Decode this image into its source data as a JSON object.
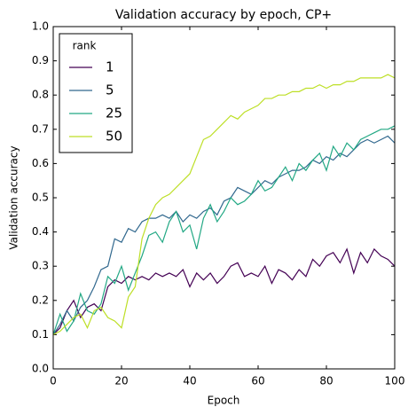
{
  "chart_data": {
    "type": "line",
    "title": "Validation accuracy by epoch, CP+",
    "x_label": "Epoch",
    "y_label": "Validation accuracy",
    "legend_title": "rank",
    "legend": "upper left",
    "x": [
      0,
      2,
      4,
      6,
      8,
      10,
      12,
      14,
      16,
      18,
      20,
      22,
      24,
      26,
      28,
      30,
      32,
      34,
      36,
      38,
      40,
      42,
      44,
      46,
      48,
      50,
      52,
      54,
      56,
      58,
      60,
      62,
      64,
      66,
      68,
      70,
      72,
      74,
      76,
      78,
      80,
      82,
      84,
      86,
      88,
      90,
      92,
      94,
      96,
      98,
      100
    ],
    "series": [
      {
        "name": "1",
        "color": "#440154",
        "values": [
          0.1,
          0.12,
          0.17,
          0.2,
          0.15,
          0.18,
          0.19,
          0.17,
          0.24,
          0.26,
          0.25,
          0.27,
          0.26,
          0.27,
          0.26,
          0.28,
          0.27,
          0.28,
          0.27,
          0.29,
          0.24,
          0.28,
          0.26,
          0.28,
          0.25,
          0.27,
          0.3,
          0.31,
          0.27,
          0.28,
          0.27,
          0.3,
          0.25,
          0.29,
          0.28,
          0.26,
          0.29,
          0.27,
          0.32,
          0.3,
          0.33,
          0.34,
          0.31,
          0.35,
          0.28,
          0.34,
          0.31,
          0.35,
          0.33,
          0.32,
          0.3
        ]
      },
      {
        "name": "5",
        "color": "#31688e",
        "values": [
          0.1,
          0.13,
          0.17,
          0.14,
          0.18,
          0.2,
          0.24,
          0.29,
          0.3,
          0.38,
          0.37,
          0.41,
          0.4,
          0.43,
          0.44,
          0.44,
          0.45,
          0.44,
          0.46,
          0.43,
          0.45,
          0.44,
          0.46,
          0.47,
          0.45,
          0.49,
          0.5,
          0.53,
          0.52,
          0.51,
          0.53,
          0.55,
          0.54,
          0.56,
          0.57,
          0.58,
          0.58,
          0.59,
          0.61,
          0.6,
          0.62,
          0.61,
          0.63,
          0.62,
          0.64,
          0.66,
          0.67,
          0.66,
          0.67,
          0.68,
          0.66
        ]
      },
      {
        "name": "25",
        "color": "#22a884",
        "values": [
          0.1,
          0.16,
          0.11,
          0.14,
          0.22,
          0.17,
          0.16,
          0.19,
          0.27,
          0.25,
          0.3,
          0.23,
          0.28,
          0.33,
          0.39,
          0.4,
          0.37,
          0.43,
          0.46,
          0.4,
          0.42,
          0.35,
          0.44,
          0.48,
          0.43,
          0.46,
          0.5,
          0.48,
          0.49,
          0.51,
          0.55,
          0.52,
          0.53,
          0.56,
          0.59,
          0.55,
          0.6,
          0.58,
          0.61,
          0.63,
          0.58,
          0.65,
          0.62,
          0.66,
          0.64,
          0.67,
          0.68,
          0.69,
          0.7,
          0.7,
          0.71
        ]
      },
      {
        "name": "50",
        "color": "#bddf26",
        "values": [
          0.1,
          0.11,
          0.13,
          0.15,
          0.16,
          0.12,
          0.17,
          0.18,
          0.15,
          0.14,
          0.12,
          0.21,
          0.24,
          0.38,
          0.44,
          0.48,
          0.5,
          0.51,
          0.53,
          0.55,
          0.57,
          0.62,
          0.67,
          0.68,
          0.7,
          0.72,
          0.74,
          0.73,
          0.75,
          0.76,
          0.77,
          0.79,
          0.79,
          0.8,
          0.8,
          0.81,
          0.81,
          0.82,
          0.82,
          0.83,
          0.82,
          0.83,
          0.83,
          0.84,
          0.84,
          0.85,
          0.85,
          0.85,
          0.85,
          0.86,
          0.85
        ]
      }
    ],
    "xlim": [
      0,
      100
    ],
    "xticks": [
      0,
      20,
      40,
      60,
      80,
      100
    ],
    "ylim": [
      0,
      1
    ],
    "yticks": [
      {
        "value": 0,
        "label": "0.0"
      },
      0.1,
      0.2,
      0.3,
      0.4,
      0.5,
      0.6,
      0.7,
      0.8,
      0.9,
      {
        "value": 1,
        "label": "1.0"
      }
    ]
  }
}
